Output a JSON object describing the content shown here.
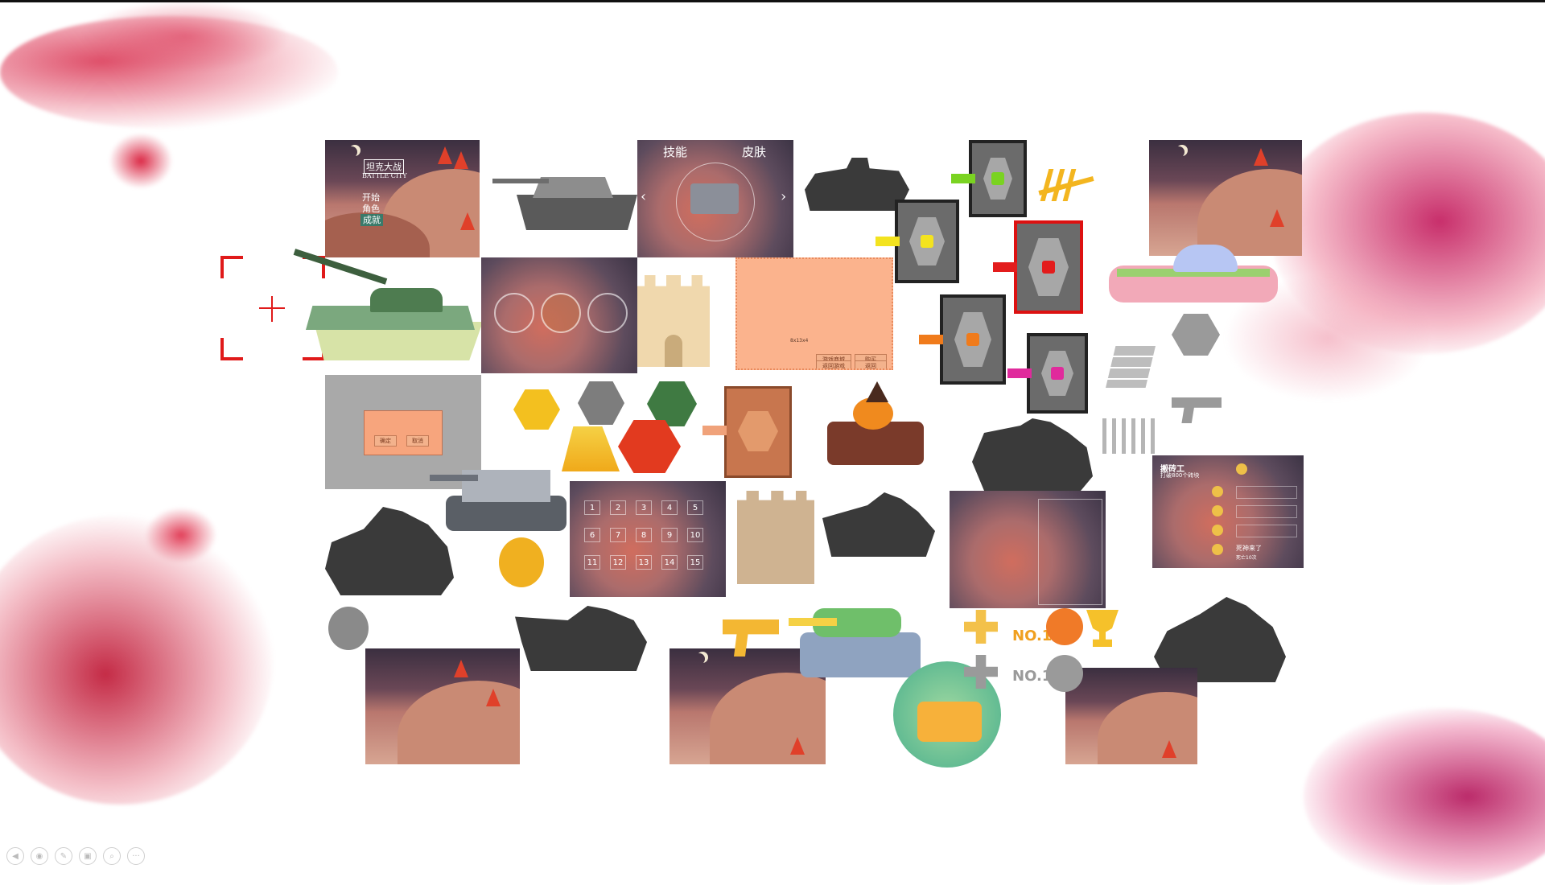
{
  "title_screen": {
    "title_cn": "坦克大战",
    "title_en": "BATTLE CITY",
    "menu": [
      "开始",
      "角色",
      "成就"
    ]
  },
  "skill_screen": {
    "tab_skill": "技能",
    "tab_skin": "皮肤",
    "arrow_left": "‹",
    "arrow_right": "›"
  },
  "shop_panel": {
    "price": "8x13x4",
    "buttons": [
      "游戏商城",
      "购买",
      "返回游戏",
      "返回"
    ]
  },
  "dialog": {
    "confirm": "确定",
    "cancel": "取消"
  },
  "level_select": {
    "levels": [
      "1",
      "2",
      "3",
      "4",
      "5",
      "6",
      "7",
      "8",
      "9",
      "10",
      "11",
      "12",
      "13",
      "14",
      "15"
    ]
  },
  "achievements": {
    "title": "搬砖工",
    "subtitle": "打破800个砖块",
    "bottom_title": "死神来了",
    "bottom_sub": "死亡10次"
  },
  "badges": {
    "no1": "NO.1",
    "no1_gray": "NO.1"
  },
  "toolbar": {
    "buttons": [
      "◀",
      "◉",
      "✎",
      "▣",
      "⌕",
      "···"
    ]
  },
  "colors": {
    "splash_red": "#d9304f",
    "splash_magenta": "#c2185b",
    "mountain": "#c98a74",
    "tree_red": "#e0402a",
    "silhouette": "#3a3a3a",
    "gem_green": "#7ad321",
    "gem_yellow": "#f3e31f",
    "gem_red": "#e31c1c",
    "gem_orange": "#f07b1b",
    "gem_pink": "#e02a9c"
  }
}
